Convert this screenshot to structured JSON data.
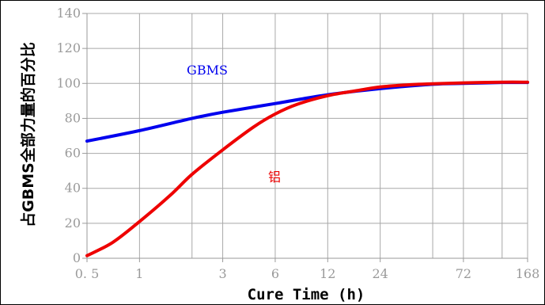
{
  "chart_data": {
    "type": "line",
    "title": "",
    "xlabel": "Cure Time (h)",
    "ylabel": "占GBMS全部力量的百分比",
    "x_scale": "log",
    "x_ticks": [
      0.5,
      1,
      3,
      6,
      12,
      24,
      72,
      168
    ],
    "x_tick_labels": [
      "0. 5",
      "1",
      "3",
      "6",
      "12",
      "24",
      "72",
      "168"
    ],
    "x_grid_extra": [
      2,
      48,
      120
    ],
    "xlim": [
      0.5,
      168
    ],
    "ylim": [
      0,
      140
    ],
    "y_ticks": [
      0,
      20,
      40,
      60,
      80,
      100,
      120,
      140
    ],
    "y_tick_labels": [
      "0",
      "20",
      "40",
      "60",
      "80",
      "100",
      "120",
      "140"
    ],
    "grid": true,
    "series": [
      {
        "name": "GBMS",
        "color": "#0000ee",
        "x": [
          0.5,
          1,
          2,
          3,
          6,
          12,
          24,
          48,
          72,
          120,
          168
        ],
        "y": [
          67,
          73,
          80,
          83.5,
          88.5,
          93.5,
          97,
          99.5,
          100,
          100.5,
          100.5
        ]
      },
      {
        "name": "铝",
        "color": "#ee0000",
        "x": [
          0.5,
          0.7,
          1,
          1.5,
          2,
          3,
          4.5,
          6,
          8,
          12,
          18,
          24,
          36,
          48,
          72,
          120,
          168
        ],
        "y": [
          1.5,
          9,
          21,
          36,
          48,
          62,
          75,
          82.5,
          88,
          93,
          96,
          98,
          99.3,
          99.8,
          100.3,
          100.7,
          100.7
        ]
      }
    ]
  }
}
